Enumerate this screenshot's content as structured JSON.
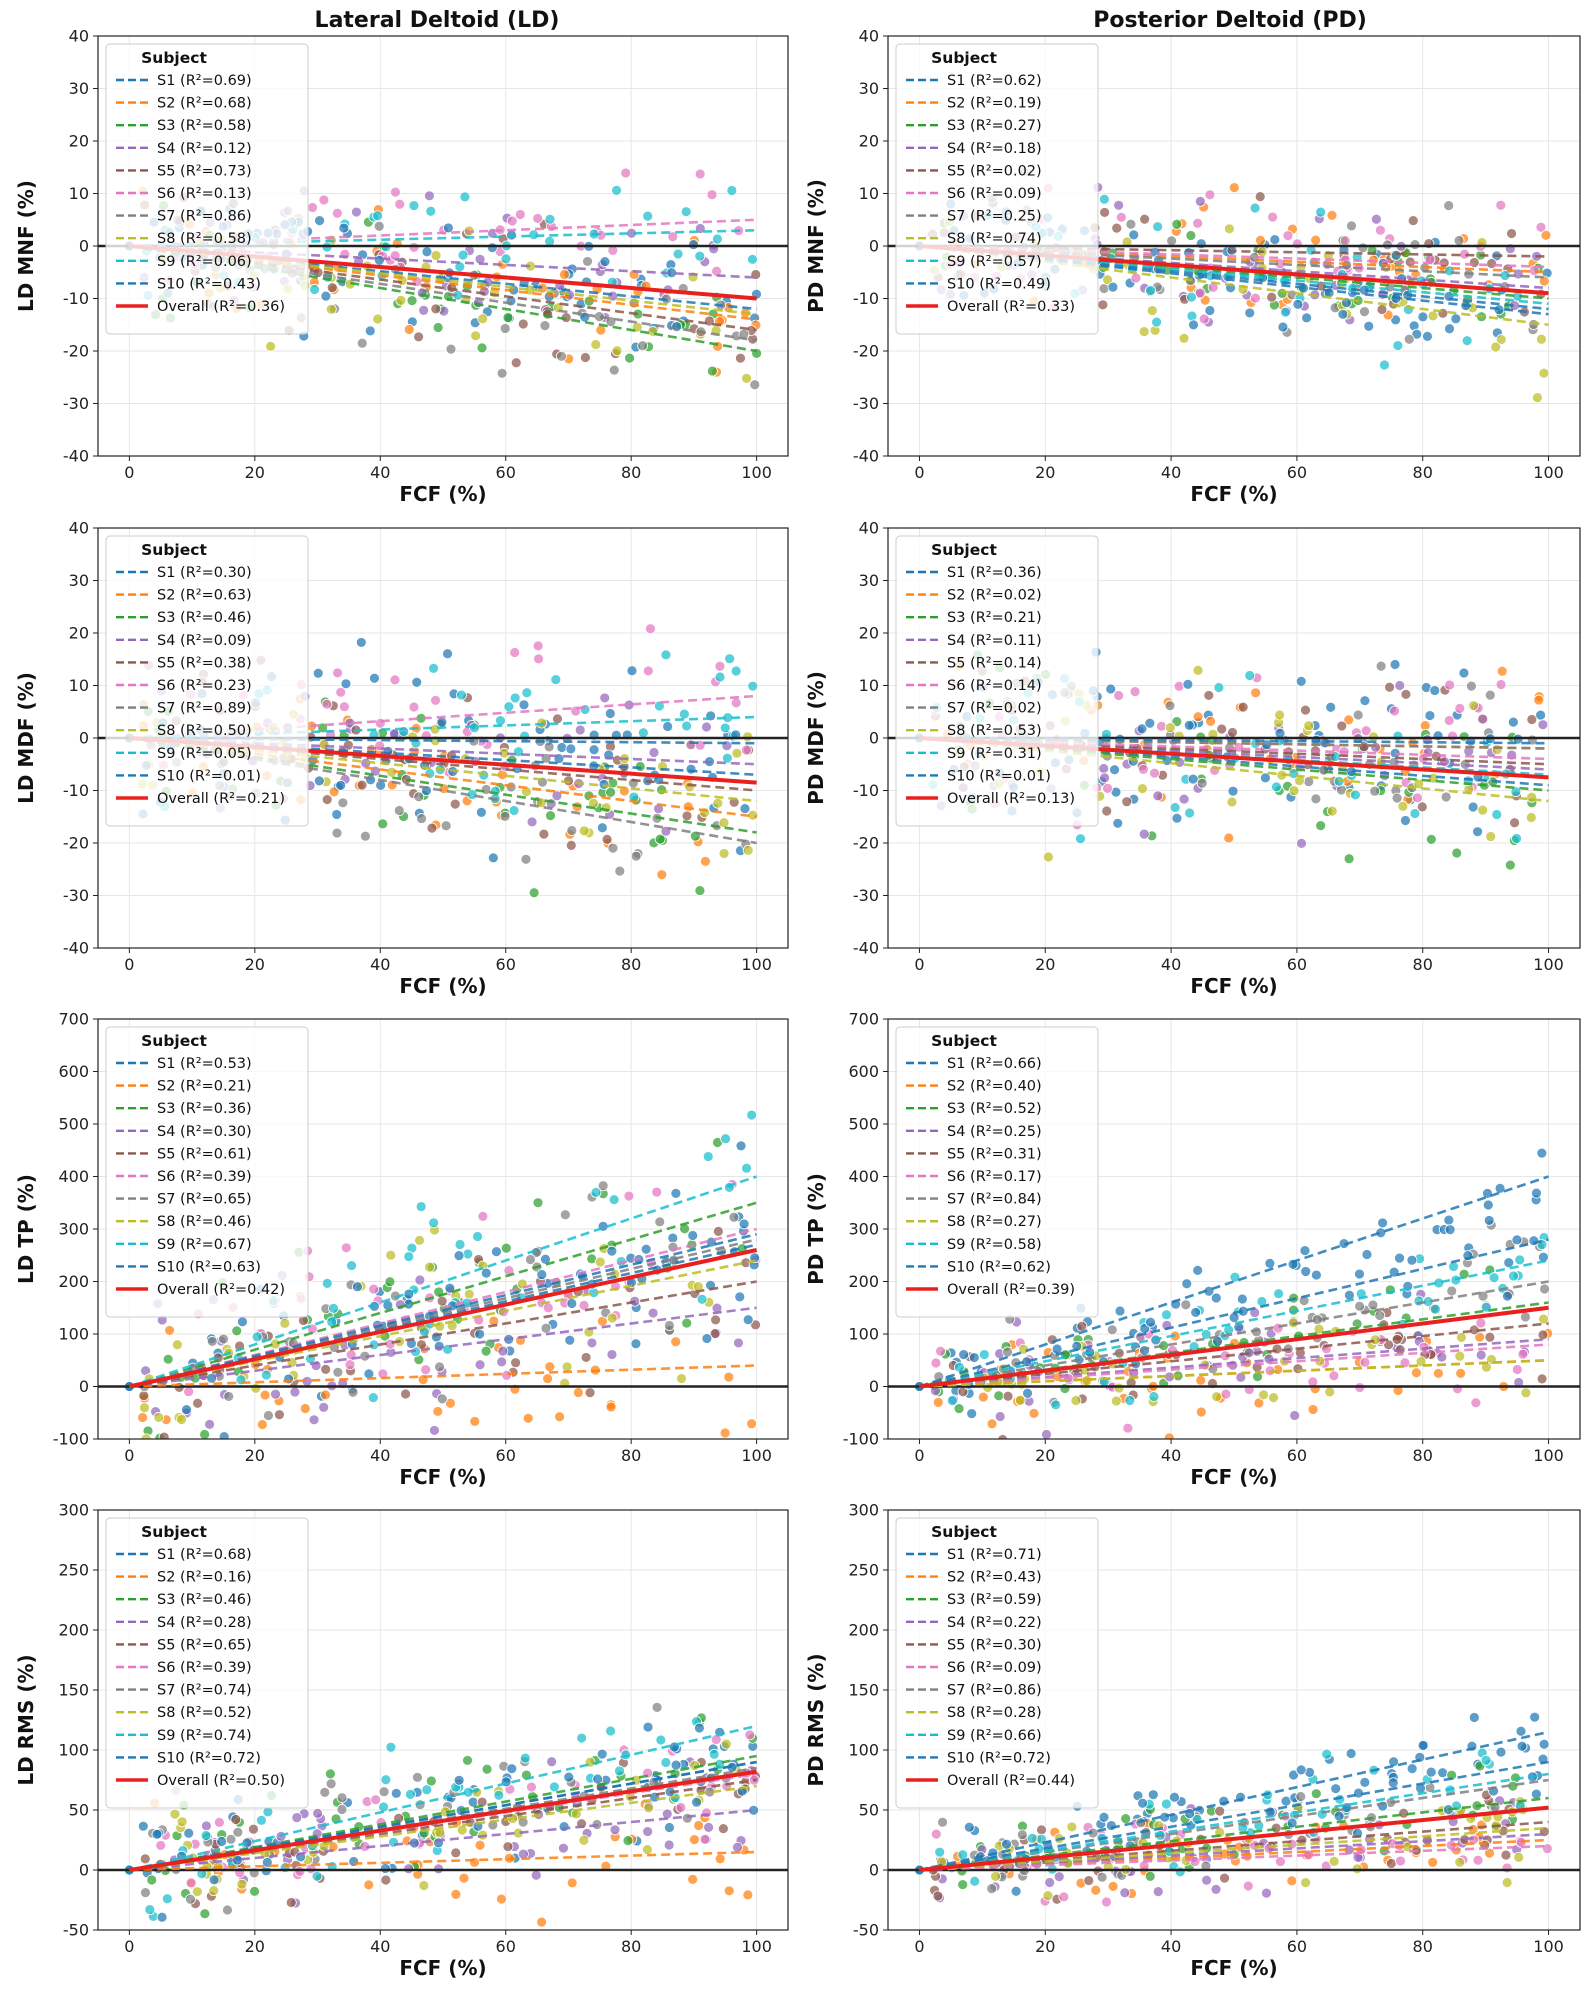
{
  "colors": {
    "S1": "#1f77b4",
    "S2": "#ff7f0e",
    "S3": "#2ca02c",
    "S4": "#9467bd",
    "S5": "#8c564b",
    "S6": "#e377c2",
    "S7": "#7f7f7f",
    "S8": "#bcbd22",
    "S9": "#17becf",
    "S10": "#1f77b4",
    "overall": "#e8211f",
    "zero_line": "#222222",
    "grid": "#e6e6e6"
  },
  "column_titles": [
    "Lateral Deltoid (LD)",
    "Posterior Deltoid (PD)"
  ],
  "legend_title": "Subject",
  "chart_data": [
    {
      "type": "scatter",
      "muscle": "LD",
      "metric": "MNF",
      "xlabel": "FCF (%)",
      "ylabel": "LD MNF (%)",
      "xlim": [
        -5,
        105
      ],
      "ylim": [
        -40,
        40
      ],
      "xticks": [
        0,
        20,
        40,
        60,
        80,
        100
      ],
      "yticks": [
        -40,
        -30,
        -20,
        -10,
        0,
        10,
        20,
        30,
        40
      ],
      "grid": true,
      "legend_position": "upper-left",
      "scatter_spread": 9,
      "series": [
        {
          "name": "S1",
          "label": "S1 (R²=0.69)",
          "slope": -0.12,
          "intercept": 0
        },
        {
          "name": "S2",
          "label": "S2 (R²=0.68)",
          "slope": -0.14,
          "intercept": 0
        },
        {
          "name": "S3",
          "label": "S3 (R²=0.58)",
          "slope": -0.2,
          "intercept": 0
        },
        {
          "name": "S4",
          "label": "S4 (R²=0.12)",
          "slope": -0.06,
          "intercept": 0
        },
        {
          "name": "S5",
          "label": "S5 (R²=0.73)",
          "slope": -0.16,
          "intercept": 0
        },
        {
          "name": "S6",
          "label": "S6 (R²=0.13)",
          "slope": 0.05,
          "intercept": 0
        },
        {
          "name": "S7",
          "label": "S7 (R²=0.86)",
          "slope": -0.18,
          "intercept": 0
        },
        {
          "name": "S8",
          "label": "S8 (R²=0.58)",
          "slope": -0.13,
          "intercept": 0
        },
        {
          "name": "S9",
          "label": "S9 (R²=0.06)",
          "slope": 0.03,
          "intercept": 0
        },
        {
          "name": "S10",
          "label": "S10 (R²=0.43)",
          "slope": -0.1,
          "intercept": 0
        }
      ],
      "overall": {
        "label": "Overall (R²=0.36)",
        "slope": -0.1,
        "intercept": 0
      }
    },
    {
      "type": "scatter",
      "muscle": "PD",
      "metric": "MNF",
      "xlabel": "FCF (%)",
      "ylabel": "PD MNF (%)",
      "xlim": [
        -5,
        105
      ],
      "ylim": [
        -40,
        40
      ],
      "xticks": [
        0,
        20,
        40,
        60,
        80,
        100
      ],
      "yticks": [
        -40,
        -30,
        -20,
        -10,
        0,
        10,
        20,
        30,
        40
      ],
      "grid": true,
      "legend_position": "upper-left",
      "scatter_spread": 8,
      "series": [
        {
          "name": "S1",
          "label": "S1 (R²=0.62)",
          "slope": -0.13,
          "intercept": 0
        },
        {
          "name": "S2",
          "label": "S2 (R²=0.19)",
          "slope": -0.05,
          "intercept": 0
        },
        {
          "name": "S3",
          "label": "S3 (R²=0.27)",
          "slope": -0.1,
          "intercept": 0
        },
        {
          "name": "S4",
          "label": "S4 (R²=0.18)",
          "slope": -0.08,
          "intercept": 0
        },
        {
          "name": "S5",
          "label": "S5 (R²=0.02)",
          "slope": -0.02,
          "intercept": 0
        },
        {
          "name": "S6",
          "label": "S6 (R²=0.09)",
          "slope": -0.04,
          "intercept": 0
        },
        {
          "name": "S7",
          "label": "S7 (R²=0.25)",
          "slope": -0.06,
          "intercept": 0
        },
        {
          "name": "S8",
          "label": "S8 (R²=0.74)",
          "slope": -0.15,
          "intercept": 0
        },
        {
          "name": "S9",
          "label": "S9 (R²=0.57)",
          "slope": -0.11,
          "intercept": 0
        },
        {
          "name": "S10",
          "label": "S10 (R²=0.49)",
          "slope": -0.12,
          "intercept": 0
        }
      ],
      "overall": {
        "label": "Overall (R²=0.33)",
        "slope": -0.09,
        "intercept": 0
      }
    },
    {
      "type": "scatter",
      "muscle": "LD",
      "metric": "MDF",
      "xlabel": "FCF (%)",
      "ylabel": "LD MDF (%)",
      "xlim": [
        -5,
        105
      ],
      "ylim": [
        -40,
        40
      ],
      "xticks": [
        0,
        20,
        40,
        60,
        80,
        100
      ],
      "yticks": [
        -40,
        -30,
        -20,
        -10,
        0,
        10,
        20,
        30,
        40
      ],
      "grid": true,
      "legend_position": "upper-left",
      "scatter_spread": 11,
      "series": [
        {
          "name": "S1",
          "label": "S1 (R²=0.30)",
          "slope": -0.07,
          "intercept": 0
        },
        {
          "name": "S2",
          "label": "S2 (R²=0.63)",
          "slope": -0.15,
          "intercept": 0
        },
        {
          "name": "S3",
          "label": "S3 (R²=0.46)",
          "slope": -0.18,
          "intercept": 0
        },
        {
          "name": "S4",
          "label": "S4 (R²=0.09)",
          "slope": -0.05,
          "intercept": 0
        },
        {
          "name": "S5",
          "label": "S5 (R²=0.38)",
          "slope": -0.1,
          "intercept": 0
        },
        {
          "name": "S6",
          "label": "S6 (R²=0.23)",
          "slope": 0.08,
          "intercept": 0
        },
        {
          "name": "S7",
          "label": "S7 (R²=0.89)",
          "slope": -0.2,
          "intercept": 0
        },
        {
          "name": "S8",
          "label": "S8 (R²=0.50)",
          "slope": -0.12,
          "intercept": 0
        },
        {
          "name": "S9",
          "label": "S9 (R²=0.05)",
          "slope": 0.04,
          "intercept": 0
        },
        {
          "name": "S10",
          "label": "S10 (R²=0.01)",
          "slope": -0.01,
          "intercept": 0
        }
      ],
      "overall": {
        "label": "Overall (R²=0.21)",
        "slope": -0.085,
        "intercept": 0
      }
    },
    {
      "type": "scatter",
      "muscle": "PD",
      "metric": "MDF",
      "xlabel": "FCF (%)",
      "ylabel": "PD MDF (%)",
      "xlim": [
        -5,
        105
      ],
      "ylim": [
        -40,
        40
      ],
      "xticks": [
        0,
        20,
        40,
        60,
        80,
        100
      ],
      "yticks": [
        -40,
        -30,
        -20,
        -10,
        0,
        10,
        20,
        30,
        40
      ],
      "grid": true,
      "legend_position": "upper-left",
      "scatter_spread": 11,
      "series": [
        {
          "name": "S1",
          "label": "S1 (R²=0.36)",
          "slope": -0.09,
          "intercept": 0
        },
        {
          "name": "S2",
          "label": "S2 (R²=0.02)",
          "slope": -0.02,
          "intercept": 0
        },
        {
          "name": "S3",
          "label": "S3 (R²=0.21)",
          "slope": -0.1,
          "intercept": 0
        },
        {
          "name": "S4",
          "label": "S4 (R²=0.11)",
          "slope": -0.06,
          "intercept": 0
        },
        {
          "name": "S5",
          "label": "S5 (R²=0.14)",
          "slope": -0.05,
          "intercept": 0
        },
        {
          "name": "S6",
          "label": "S6 (R²=0.14)",
          "slope": -0.04,
          "intercept": 0
        },
        {
          "name": "S7",
          "label": "S7 (R²=0.02)",
          "slope": -0.02,
          "intercept": 0
        },
        {
          "name": "S8",
          "label": "S8 (R²=0.53)",
          "slope": -0.12,
          "intercept": 0
        },
        {
          "name": "S9",
          "label": "S9 (R²=0.31)",
          "slope": -0.07,
          "intercept": 0
        },
        {
          "name": "S10",
          "label": "S10 (R²=0.01)",
          "slope": -0.01,
          "intercept": 0
        }
      ],
      "overall": {
        "label": "Overall (R²=0.13)",
        "slope": -0.075,
        "intercept": 0
      }
    },
    {
      "type": "scatter",
      "muscle": "LD",
      "metric": "TP",
      "xlabel": "FCF (%)",
      "ylabel": "LD TP (%)",
      "xlim": [
        -5,
        105
      ],
      "ylim": [
        -100,
        700
      ],
      "xticks": [
        0,
        20,
        40,
        60,
        80,
        100
      ],
      "yticks": [
        -100,
        0,
        100,
        200,
        300,
        400,
        500,
        600,
        700
      ],
      "grid": true,
      "legend_position": "upper-left",
      "scatter_spread": 120,
      "series": [
        {
          "name": "S1",
          "label": "S1 (R²=0.53)",
          "slope": 2.7,
          "intercept": 0
        },
        {
          "name": "S2",
          "label": "S2 (R²=0.21)",
          "slope": 0.4,
          "intercept": 0
        },
        {
          "name": "S3",
          "label": "S3 (R²=0.36)",
          "slope": 3.5,
          "intercept": 0
        },
        {
          "name": "S4",
          "label": "S4 (R²=0.30)",
          "slope": 1.5,
          "intercept": 0
        },
        {
          "name": "S5",
          "label": "S5 (R²=0.61)",
          "slope": 2.0,
          "intercept": 0
        },
        {
          "name": "S6",
          "label": "S6 (R²=0.39)",
          "slope": 3.0,
          "intercept": 0
        },
        {
          "name": "S7",
          "label": "S7 (R²=0.65)",
          "slope": 2.8,
          "intercept": 0
        },
        {
          "name": "S8",
          "label": "S8 (R²=0.46)",
          "slope": 2.4,
          "intercept": 0
        },
        {
          "name": "S9",
          "label": "S9 (R²=0.67)",
          "slope": 4.0,
          "intercept": 0
        },
        {
          "name": "S10",
          "label": "S10 (R²=0.63)",
          "slope": 2.9,
          "intercept": 0
        }
      ],
      "overall": {
        "label": "Overall (R²=0.42)",
        "slope": 2.6,
        "intercept": 0
      }
    },
    {
      "type": "scatter",
      "muscle": "PD",
      "metric": "TP",
      "xlabel": "FCF (%)",
      "ylabel": "PD TP (%)",
      "xlim": [
        -5,
        105
      ],
      "ylim": [
        -100,
        700
      ],
      "xticks": [
        0,
        20,
        40,
        60,
        80,
        100
      ],
      "yticks": [
        -100,
        0,
        100,
        200,
        300,
        400,
        500,
        600,
        700
      ],
      "grid": true,
      "legend_position": "upper-left",
      "scatter_spread": 70,
      "series": [
        {
          "name": "S1",
          "label": "S1 (R²=0.66)",
          "slope": 4.0,
          "intercept": 0
        },
        {
          "name": "S2",
          "label": "S2 (R²=0.40)",
          "slope": 0.5,
          "intercept": 0
        },
        {
          "name": "S3",
          "label": "S3 (R²=0.52)",
          "slope": 1.6,
          "intercept": 0
        },
        {
          "name": "S4",
          "label": "S4 (R²=0.25)",
          "slope": 0.9,
          "intercept": 0
        },
        {
          "name": "S5",
          "label": "S5 (R²=0.31)",
          "slope": 1.2,
          "intercept": 0
        },
        {
          "name": "S6",
          "label": "S6 (R²=0.17)",
          "slope": 0.8,
          "intercept": 0
        },
        {
          "name": "S7",
          "label": "S7 (R²=0.84)",
          "slope": 2.0,
          "intercept": 0
        },
        {
          "name": "S8",
          "label": "S8 (R²=0.27)",
          "slope": 0.5,
          "intercept": 0
        },
        {
          "name": "S9",
          "label": "S9 (R²=0.58)",
          "slope": 2.4,
          "intercept": 0
        },
        {
          "name": "S10",
          "label": "S10 (R²=0.62)",
          "slope": 2.8,
          "intercept": 0
        }
      ],
      "overall": {
        "label": "Overall (R²=0.39)",
        "slope": 1.5,
        "intercept": 0
      }
    },
    {
      "type": "scatter",
      "muscle": "LD",
      "metric": "RMS",
      "xlabel": "FCF (%)",
      "ylabel": "LD RMS (%)",
      "xlim": [
        -5,
        105
      ],
      "ylim": [
        -50,
        300
      ],
      "xticks": [
        0,
        20,
        40,
        60,
        80,
        100
      ],
      "yticks": [
        -50,
        0,
        50,
        100,
        150,
        200,
        250,
        300
      ],
      "grid": true,
      "legend_position": "upper-left",
      "scatter_spread": 35,
      "series": [
        {
          "name": "S1",
          "label": "S1 (R²=0.68)",
          "slope": 0.9,
          "intercept": 0
        },
        {
          "name": "S2",
          "label": "S2 (R²=0.16)",
          "slope": 0.15,
          "intercept": 0
        },
        {
          "name": "S3",
          "label": "S3 (R²=0.46)",
          "slope": 0.95,
          "intercept": 0
        },
        {
          "name": "S4",
          "label": "S4 (R²=0.28)",
          "slope": 0.5,
          "intercept": 0
        },
        {
          "name": "S5",
          "label": "S5 (R²=0.65)",
          "slope": 0.75,
          "intercept": 0
        },
        {
          "name": "S6",
          "label": "S6 (R²=0.39)",
          "slope": 0.8,
          "intercept": 0
        },
        {
          "name": "S7",
          "label": "S7 (R²=0.74)",
          "slope": 0.85,
          "intercept": 0
        },
        {
          "name": "S8",
          "label": "S8 (R²=0.52)",
          "slope": 0.7,
          "intercept": 0
        },
        {
          "name": "S9",
          "label": "S9 (R²=0.74)",
          "slope": 1.2,
          "intercept": 0
        },
        {
          "name": "S10",
          "label": "S10 (R²=0.72)",
          "slope": 0.9,
          "intercept": 0
        }
      ],
      "overall": {
        "label": "Overall (R²=0.50)",
        "slope": 0.82,
        "intercept": 0
      }
    },
    {
      "type": "scatter",
      "muscle": "PD",
      "metric": "RMS",
      "xlabel": "FCF (%)",
      "ylabel": "PD RMS (%)",
      "xlim": [
        -5,
        105
      ],
      "ylim": [
        -50,
        300
      ],
      "xticks": [
        0,
        20,
        40,
        60,
        80,
        100
      ],
      "yticks": [
        -50,
        0,
        50,
        100,
        150,
        200,
        250,
        300
      ],
      "grid": true,
      "legend_position": "upper-left",
      "scatter_spread": 25,
      "series": [
        {
          "name": "S1",
          "label": "S1 (R²=0.71)",
          "slope": 1.15,
          "intercept": 0
        },
        {
          "name": "S2",
          "label": "S2 (R²=0.43)",
          "slope": 0.25,
          "intercept": 0
        },
        {
          "name": "S3",
          "label": "S3 (R²=0.59)",
          "slope": 0.6,
          "intercept": 0
        },
        {
          "name": "S4",
          "label": "S4 (R²=0.22)",
          "slope": 0.3,
          "intercept": 0
        },
        {
          "name": "S5",
          "label": "S5 (R²=0.30)",
          "slope": 0.4,
          "intercept": 0
        },
        {
          "name": "S6",
          "label": "S6 (R²=0.09)",
          "slope": 0.2,
          "intercept": 0
        },
        {
          "name": "S7",
          "label": "S7 (R²=0.86)",
          "slope": 0.75,
          "intercept": 0
        },
        {
          "name": "S8",
          "label": "S8 (R²=0.28)",
          "slope": 0.35,
          "intercept": 0
        },
        {
          "name": "S9",
          "label": "S9 (R²=0.66)",
          "slope": 0.8,
          "intercept": 0
        },
        {
          "name": "S10",
          "label": "S10 (R²=0.72)",
          "slope": 0.9,
          "intercept": 0
        }
      ],
      "overall": {
        "label": "Overall (R²=0.44)",
        "slope": 0.52,
        "intercept": 0
      }
    }
  ]
}
